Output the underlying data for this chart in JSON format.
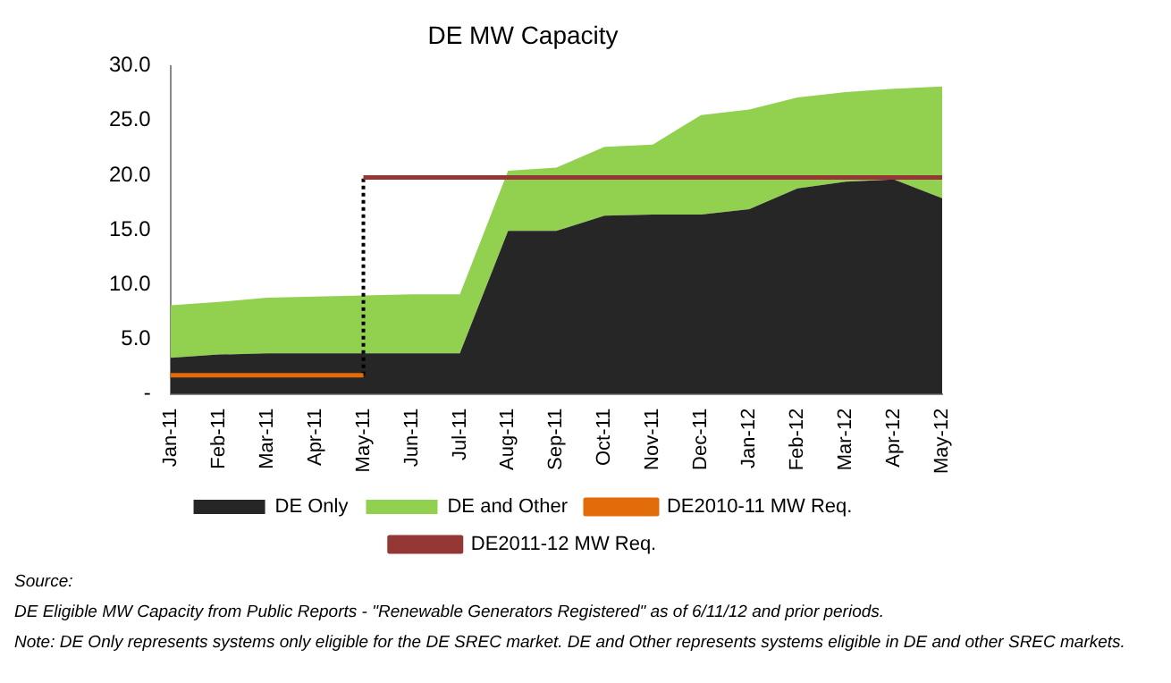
{
  "chart_data": {
    "type": "area",
    "title": "DE MW Capacity",
    "stacked": true,
    "categories": [
      "Jan-11",
      "Feb-11",
      "Mar-11",
      "Apr-11",
      "May-11",
      "Jun-11",
      "Jul-11",
      "Aug-11",
      "Sep-11",
      "Oct-11",
      "Nov-11",
      "Dec-11",
      "Jan-12",
      "Feb-12",
      "Mar-12",
      "Apr-12",
      "May-12"
    ],
    "series": [
      {
        "name": "DE Only",
        "color": "#262626",
        "values": [
          3.3,
          3.6,
          3.7,
          3.7,
          3.7,
          3.7,
          3.7,
          14.9,
          14.9,
          16.3,
          16.4,
          16.4,
          16.9,
          18.8,
          19.4,
          19.6,
          17.9
        ]
      },
      {
        "name": "DE and Other",
        "color": "#92d050",
        "values": [
          4.8,
          4.8,
          5.1,
          5.2,
          5.3,
          5.4,
          5.4,
          5.5,
          5.8,
          6.3,
          6.4,
          9.1,
          9.1,
          8.3,
          8.2,
          8.3,
          10.2
        ]
      },
      {
        "name": "DE2010-11 MW Req.",
        "type": "line",
        "color": "#e36c0a",
        "values": [
          1.7,
          1.7,
          1.7,
          1.7,
          1.7,
          null,
          null,
          null,
          null,
          null,
          null,
          null,
          null,
          null,
          null,
          null,
          null
        ]
      },
      {
        "name": "DE2011-12 MW Req.",
        "type": "line",
        "color": "#953735",
        "values": [
          null,
          null,
          null,
          null,
          19.8,
          19.8,
          19.8,
          19.8,
          19.8,
          19.8,
          19.8,
          19.8,
          19.8,
          19.8,
          19.8,
          19.8,
          19.8
        ]
      },
      {
        "type": "line",
        "line_style": "dotted",
        "color": "#000000",
        "x": [
          "May-11",
          "May-11"
        ],
        "values": [
          1.7,
          19.8
        ]
      }
    ],
    "ylim": [
      0,
      30
    ],
    "yticks": [
      {
        "value": 0,
        "label": "-"
      },
      {
        "value": 5,
        "label": "5.0"
      },
      {
        "value": 10,
        "label": "10.0"
      },
      {
        "value": 15,
        "label": "15.0"
      },
      {
        "value": 20,
        "label": "20.0"
      },
      {
        "value": 25,
        "label": "25.0"
      },
      {
        "value": 30,
        "label": "30.0"
      }
    ],
    "grid": false,
    "legend": "bottom",
    "annotations": [
      "Source:",
      "DE Eligible MW Capacity from Public Reports - \"Renewable Generators Registered\" as of 6/11/12 and prior periods.",
      "Note: DE Only represents systems only eligible for the DE SREC market. DE and Other represents systems eligible in DE and other SREC markets."
    ]
  }
}
